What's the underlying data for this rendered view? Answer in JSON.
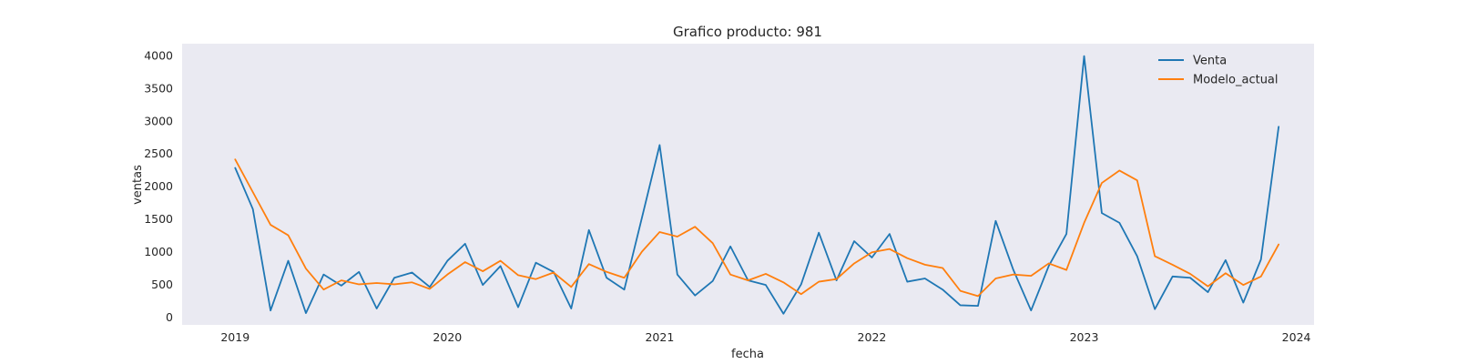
{
  "chart_data": {
    "type": "line",
    "title": "Grafico producto: 981",
    "xlabel": "fecha",
    "ylabel": "ventas",
    "x_ticks": [
      "2019",
      "2020",
      "2021",
      "2022",
      "2023",
      "2024"
    ],
    "y_ticks": [
      "0",
      "500",
      "1000",
      "1500",
      "2000",
      "2500",
      "3000",
      "3500",
      "4000"
    ],
    "ylim": [
      -120,
      4180
    ],
    "xlim": [
      "2018-10",
      "2024-02"
    ],
    "grid": false,
    "legend_position": "top-right",
    "x": [
      "2019-01",
      "2019-02",
      "2019-03",
      "2019-04",
      "2019-05",
      "2019-06",
      "2019-07",
      "2019-08",
      "2019-09",
      "2019-10",
      "2019-11",
      "2019-12",
      "2020-01",
      "2020-02",
      "2020-03",
      "2020-04",
      "2020-05",
      "2020-06",
      "2020-07",
      "2020-08",
      "2020-09",
      "2020-10",
      "2020-11",
      "2020-12",
      "2021-01",
      "2021-02",
      "2021-03",
      "2021-04",
      "2021-05",
      "2021-06",
      "2021-07",
      "2021-08",
      "2021-09",
      "2021-10",
      "2021-11",
      "2021-12",
      "2022-01",
      "2022-02",
      "2022-03",
      "2022-04",
      "2022-05",
      "2022-06",
      "2022-07",
      "2022-08",
      "2022-09",
      "2022-10",
      "2022-11",
      "2022-12",
      "2023-01",
      "2023-02",
      "2023-03",
      "2023-04",
      "2023-05",
      "2023-06",
      "2023-07",
      "2023-08",
      "2023-09",
      "2023-10",
      "2023-11",
      "2023-12"
    ],
    "series": [
      {
        "name": "Venta",
        "color": "#1f77b4",
        "values": [
          2280,
          1650,
          100,
          860,
          60,
          650,
          480,
          690,
          130,
          600,
          680,
          460,
          860,
          1120,
          490,
          780,
          150,
          830,
          690,
          130,
          1330,
          600,
          420,
          1520,
          2630,
          650,
          330,
          550,
          1080,
          560,
          490,
          50,
          500,
          1290,
          560,
          1160,
          910,
          1270,
          540,
          590,
          420,
          180,
          170,
          1470,
          720,
          100,
          780,
          1270,
          3990,
          1590,
          1440,
          930,
          120,
          620,
          600,
          380,
          870,
          220,
          880,
          2910
        ]
      },
      {
        "name": "Modelo_actual",
        "color": "#ff7f0e",
        "values": [
          2410,
          1910,
          1410,
          1250,
          740,
          420,
          560,
          500,
          520,
          500,
          530,
          430,
          650,
          840,
          700,
          860,
          640,
          580,
          680,
          460,
          810,
          690,
          600,
          1000,
          1300,
          1230,
          1380,
          1130,
          650,
          560,
          660,
          530,
          350,
          540,
          580,
          820,
          990,
          1040,
          900,
          800,
          750,
          400,
          320,
          590,
          650,
          630,
          820,
          720,
          1440,
          2050,
          2240,
          2090,
          930,
          800,
          660,
          470,
          670,
          490,
          620,
          1110
        ]
      }
    ]
  }
}
